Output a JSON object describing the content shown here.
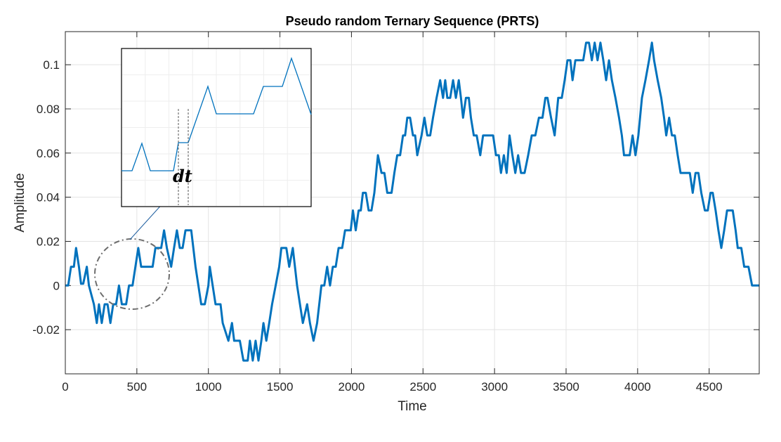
{
  "chart_data": {
    "type": "line",
    "title": "Pseudo random Ternary Sequence (PRTS)",
    "xlabel": "Time",
    "ylabel": "Amplitude",
    "xlim": [
      0,
      4850
    ],
    "ylim": [
      -0.04,
      0.115
    ],
    "xticks": [
      0,
      500,
      1000,
      1500,
      2000,
      2500,
      3000,
      3500,
      4000,
      4500
    ],
    "xtick_labels": [
      "0",
      "500",
      "1000",
      "1500",
      "2000",
      "2500",
      "3000",
      "3500",
      "4000",
      "4500"
    ],
    "yticks": [
      -0.02,
      0,
      0.02,
      0.04,
      0.06,
      0.08,
      0.1
    ],
    "ytick_labels": [
      "-0.02",
      "0",
      "0.02",
      "0.04",
      "0.06",
      "0.08",
      "0.1"
    ],
    "grid": true,
    "color": "#0072BD",
    "series": [
      {
        "values_xy": [
          [
            0,
            0
          ],
          [
            20,
            0
          ],
          [
            40,
            0.0085
          ],
          [
            60,
            0.0085
          ],
          [
            75,
            0.017
          ],
          [
            95,
            0.0085
          ],
          [
            110,
            0.0008
          ],
          [
            125,
            0.0008
          ],
          [
            150,
            0.0085
          ],
          [
            165,
            0
          ],
          [
            200,
            -0.0085
          ],
          [
            220,
            -0.017
          ],
          [
            235,
            -0.0085
          ],
          [
            255,
            -0.017
          ],
          [
            275,
            -0.0085
          ],
          [
            295,
            -0.0085
          ],
          [
            315,
            -0.017
          ],
          [
            335,
            -0.0085
          ],
          [
            355,
            -0.0085
          ],
          [
            375,
            0
          ],
          [
            395,
            -0.0085
          ],
          [
            425,
            -0.0085
          ],
          [
            445,
            0
          ],
          [
            470,
            0
          ],
          [
            490,
            0.0085
          ],
          [
            510,
            0.017
          ],
          [
            530,
            0.0085
          ],
          [
            550,
            0.0085
          ],
          [
            610,
            0.0085
          ],
          [
            630,
            0.017
          ],
          [
            670,
            0.017
          ],
          [
            690,
            0.025
          ],
          [
            710,
            0.017
          ],
          [
            740,
            0.0085
          ],
          [
            760,
            0.017
          ],
          [
            780,
            0.025
          ],
          [
            800,
            0.017
          ],
          [
            820,
            0.017
          ],
          [
            840,
            0.025
          ],
          [
            880,
            0.025
          ],
          [
            910,
            0.0085
          ],
          [
            950,
            -0.0085
          ],
          [
            975,
            -0.0085
          ],
          [
            1000,
            0
          ],
          [
            1010,
            0.0085
          ],
          [
            1030,
            0
          ],
          [
            1050,
            -0.0085
          ],
          [
            1085,
            -0.0085
          ],
          [
            1100,
            -0.017
          ],
          [
            1140,
            -0.025
          ],
          [
            1165,
            -0.017
          ],
          [
            1180,
            -0.025
          ],
          [
            1200,
            -0.025
          ],
          [
            1220,
            -0.025
          ],
          [
            1245,
            -0.034
          ],
          [
            1275,
            -0.034
          ],
          [
            1290,
            -0.025
          ],
          [
            1310,
            -0.034
          ],
          [
            1330,
            -0.025
          ],
          [
            1350,
            -0.034
          ],
          [
            1370,
            -0.025
          ],
          [
            1385,
            -0.017
          ],
          [
            1405,
            -0.025
          ],
          [
            1425,
            -0.017
          ],
          [
            1445,
            -0.0085
          ],
          [
            1470,
            0
          ],
          [
            1495,
            0.0085
          ],
          [
            1510,
            0.017
          ],
          [
            1545,
            0.017
          ],
          [
            1565,
            0.0085
          ],
          [
            1590,
            0.017
          ],
          [
            1620,
            0
          ],
          [
            1640,
            -0.0085
          ],
          [
            1660,
            -0.017
          ],
          [
            1690,
            -0.0085
          ],
          [
            1710,
            -0.017
          ],
          [
            1735,
            -0.025
          ],
          [
            1760,
            -0.017
          ],
          [
            1790,
            0
          ],
          [
            1810,
            0
          ],
          [
            1830,
            0.0085
          ],
          [
            1850,
            0
          ],
          [
            1870,
            0.0085
          ],
          [
            1890,
            0.0085
          ],
          [
            1910,
            0.017
          ],
          [
            1935,
            0.017
          ],
          [
            1955,
            0.025
          ],
          [
            1995,
            0.025
          ],
          [
            2010,
            0.034
          ],
          [
            2030,
            0.025
          ],
          [
            2050,
            0.034
          ],
          [
            2065,
            0.034
          ],
          [
            2080,
            0.042
          ],
          [
            2100,
            0.042
          ],
          [
            2120,
            0.034
          ],
          [
            2140,
            0.034
          ],
          [
            2160,
            0.042
          ],
          [
            2185,
            0.059
          ],
          [
            2210,
            0.051
          ],
          [
            2230,
            0.051
          ],
          [
            2250,
            0.042
          ],
          [
            2280,
            0.042
          ],
          [
            2300,
            0.051
          ],
          [
            2320,
            0.059
          ],
          [
            2340,
            0.059
          ],
          [
            2360,
            0.068
          ],
          [
            2375,
            0.068
          ],
          [
            2390,
            0.076
          ],
          [
            2410,
            0.076
          ],
          [
            2430,
            0.068
          ],
          [
            2445,
            0.068
          ],
          [
            2460,
            0.059
          ],
          [
            2490,
            0.068
          ],
          [
            2510,
            0.076
          ],
          [
            2530,
            0.068
          ],
          [
            2550,
            0.068
          ],
          [
            2570,
            0.076
          ],
          [
            2595,
            0.085
          ],
          [
            2620,
            0.093
          ],
          [
            2640,
            0.085
          ],
          [
            2655,
            0.093
          ],
          [
            2670,
            0.085
          ],
          [
            2690,
            0.085
          ],
          [
            2710,
            0.093
          ],
          [
            2730,
            0.085
          ],
          [
            2750,
            0.093
          ],
          [
            2765,
            0.085
          ],
          [
            2780,
            0.076
          ],
          [
            2800,
            0.085
          ],
          [
            2820,
            0.085
          ],
          [
            2835,
            0.076
          ],
          [
            2855,
            0.068
          ],
          [
            2875,
            0.068
          ],
          [
            2900,
            0.059
          ],
          [
            2920,
            0.068
          ],
          [
            2990,
            0.068
          ],
          [
            3010,
            0.059
          ],
          [
            3030,
            0.059
          ],
          [
            3045,
            0.051
          ],
          [
            3065,
            0.059
          ],
          [
            3085,
            0.051
          ],
          [
            3105,
            0.068
          ],
          [
            3125,
            0.059
          ],
          [
            3145,
            0.051
          ],
          [
            3165,
            0.059
          ],
          [
            3185,
            0.051
          ],
          [
            3210,
            0.051
          ],
          [
            3235,
            0.059
          ],
          [
            3260,
            0.068
          ],
          [
            3285,
            0.068
          ],
          [
            3310,
            0.076
          ],
          [
            3335,
            0.076
          ],
          [
            3355,
            0.085
          ],
          [
            3370,
            0.085
          ],
          [
            3395,
            0.076
          ],
          [
            3420,
            0.068
          ],
          [
            3445,
            0.085
          ],
          [
            3470,
            0.085
          ],
          [
            3490,
            0.093
          ],
          [
            3510,
            0.102
          ],
          [
            3530,
            0.102
          ],
          [
            3545,
            0.093
          ],
          [
            3565,
            0.102
          ],
          [
            3580,
            0.102
          ],
          [
            3600,
            0.102
          ],
          [
            3620,
            0.102
          ],
          [
            3640,
            0.11
          ],
          [
            3660,
            0.11
          ],
          [
            3680,
            0.102
          ],
          [
            3700,
            0.11
          ],
          [
            3720,
            0.102
          ],
          [
            3740,
            0.11
          ],
          [
            3760,
            0.102
          ],
          [
            3780,
            0.093
          ],
          [
            3800,
            0.102
          ],
          [
            3820,
            0.093
          ],
          [
            3845,
            0.085
          ],
          [
            3870,
            0.076
          ],
          [
            3890,
            0.068
          ],
          [
            3905,
            0.059
          ],
          [
            3925,
            0.059
          ],
          [
            3945,
            0.059
          ],
          [
            3965,
            0.068
          ],
          [
            3985,
            0.059
          ],
          [
            4005,
            0.068
          ],
          [
            4030,
            0.085
          ],
          [
            4055,
            0.093
          ],
          [
            4080,
            0.102
          ],
          [
            4100,
            0.11
          ],
          [
            4115,
            0.102
          ],
          [
            4140,
            0.093
          ],
          [
            4165,
            0.085
          ],
          [
            4185,
            0.076
          ],
          [
            4200,
            0.068
          ],
          [
            4220,
            0.076
          ],
          [
            4240,
            0.068
          ],
          [
            4260,
            0.068
          ],
          [
            4280,
            0.059
          ],
          [
            4300,
            0.051
          ],
          [
            4320,
            0.051
          ],
          [
            4345,
            0.051
          ],
          [
            4365,
            0.051
          ],
          [
            4385,
            0.042
          ],
          [
            4405,
            0.051
          ],
          [
            4425,
            0.051
          ],
          [
            4445,
            0.042
          ],
          [
            4470,
            0.034
          ],
          [
            4490,
            0.034
          ],
          [
            4510,
            0.042
          ],
          [
            4525,
            0.042
          ],
          [
            4545,
            0.034
          ],
          [
            4565,
            0.025
          ],
          [
            4585,
            0.017
          ],
          [
            4605,
            0.025
          ],
          [
            4625,
            0.034
          ],
          [
            4645,
            0.034
          ],
          [
            4665,
            0.034
          ],
          [
            4685,
            0.025
          ],
          [
            4700,
            0.017
          ],
          [
            4725,
            0.017
          ],
          [
            4745,
            0.0085
          ],
          [
            4775,
            0.0085
          ],
          [
            4800,
            0
          ],
          [
            4850,
            0
          ]
        ]
      }
    ],
    "inset": {
      "annotation": "dt",
      "description_points_visible": true
    }
  }
}
